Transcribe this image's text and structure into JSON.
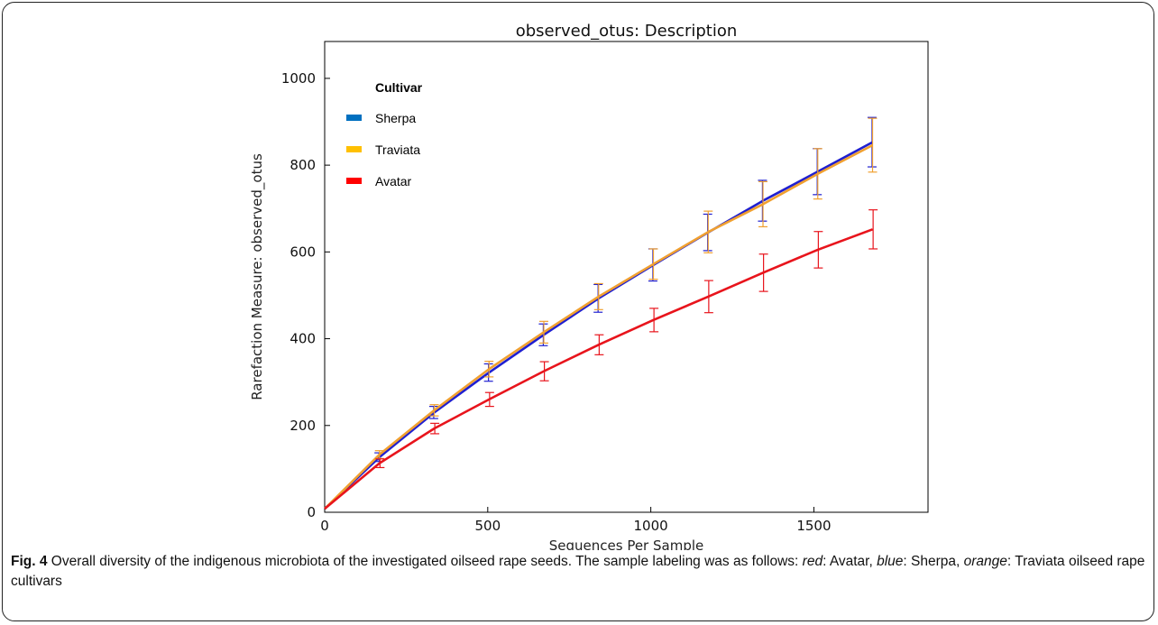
{
  "chart_data": {
    "type": "line",
    "title": "observed_otus: Description",
    "xlabel": "Sequences Per Sample",
    "ylabel": "Rarefaction Measure: observed_otus",
    "xlim": [
      0,
      1850
    ],
    "ylim": [
      0,
      1085
    ],
    "xticks": [
      0,
      500,
      1000,
      1500
    ],
    "yticks": [
      0,
      200,
      400,
      600,
      800,
      1000
    ],
    "grid": false,
    "legend": {
      "title": "Cultivar",
      "position": "top-left"
    },
    "series": [
      {
        "name": "Sherpa",
        "color": "#1f1fd0",
        "legend_color": "#0070c0",
        "x": [
          0,
          168,
          336,
          504,
          672,
          840,
          1008,
          1176,
          1344,
          1512,
          1680
        ],
        "y": [
          8,
          127,
          230,
          322,
          409,
          493,
          570,
          645,
          718,
          785,
          853
        ],
        "err": [
          0,
          10,
          14,
          20,
          25,
          32,
          37,
          42,
          47,
          53,
          57
        ]
      },
      {
        "name": "Traviata",
        "color": "#f0a030",
        "legend_color": "#ffc000",
        "x": [
          0,
          168,
          336,
          504,
          672,
          840,
          1008,
          1176,
          1344,
          1512,
          1680
        ],
        "y": [
          8,
          133,
          235,
          330,
          415,
          497,
          572,
          646,
          710,
          780,
          846
        ],
        "err": [
          0,
          9,
          13,
          18,
          25,
          30,
          35,
          48,
          52,
          58,
          62
        ]
      },
      {
        "name": "Avatar",
        "color": "#e8141c",
        "legend_color": "#ff0000",
        "x": [
          0,
          168,
          336,
          504,
          672,
          840,
          1008,
          1176,
          1344,
          1512,
          1680
        ],
        "y": [
          8,
          113,
          193,
          260,
          325,
          386,
          443,
          497,
          552,
          605,
          652
        ],
        "err": [
          0,
          10,
          12,
          16,
          22,
          23,
          27,
          37,
          43,
          42,
          45
        ]
      }
    ]
  },
  "caption": {
    "fig_label": "Fig. 4",
    "text_1": " Overall diversity of the indigenous microbiota of the investigated oilseed rape seeds. The sample labeling was as follows: ",
    "red_word": "red",
    "text_2": ": Avatar, ",
    "blue_word": "blue",
    "text_3": ": Sherpa, ",
    "orange_word": "orange",
    "text_4": ": Traviata oilseed rape cultivars"
  }
}
